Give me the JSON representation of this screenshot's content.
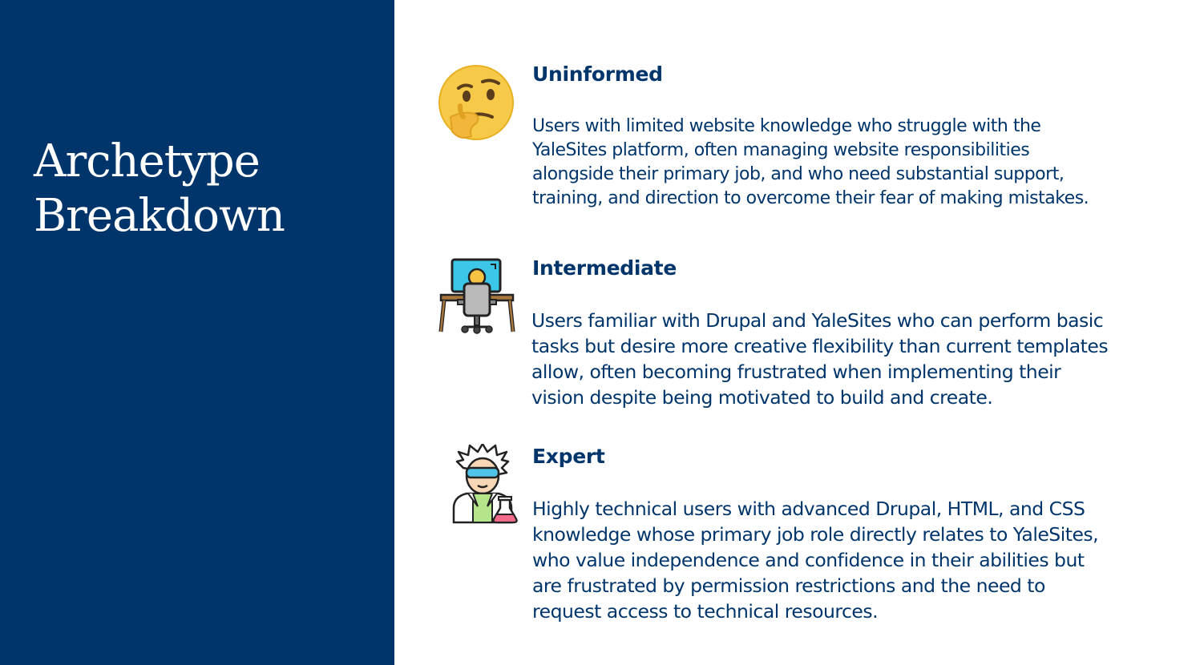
{
  "slide": {
    "title_line1": "Archetype",
    "title_line2": "Breakdown"
  },
  "archetypes": [
    {
      "icon": "thinking-face-icon",
      "heading": "Uninformed",
      "lines": [
        "Users with limited website knowledge who struggle with the",
        "YaleSites platform, often managing website responsibilities",
        "alongside their primary job, and who need substantial support,",
        "training, and direction to overcome their fear of making mistakes."
      ]
    },
    {
      "icon": "computer-desk-icon",
      "heading": "Intermediate",
      "lines": [
        "Users familiar with Drupal and YaleSites who can perform basic",
        "tasks but desire more creative flexibility than current templates",
        "allow, often becoming frustrated when implementing their",
        "vision despite being motivated to build and create."
      ]
    },
    {
      "icon": "scientist-icon",
      "heading": "Expert",
      "lines": [
        "Highly technical users with advanced Drupal, HTML, and CSS",
        "knowledge whose primary job role directly relates to YaleSites,",
        "who value independence and confidence in their abilities but",
        "are frustrated by permission restrictions and the need to",
        "request access to technical resources."
      ]
    }
  ],
  "colors": {
    "yale_blue": "#00356b",
    "background": "#ffffff"
  }
}
